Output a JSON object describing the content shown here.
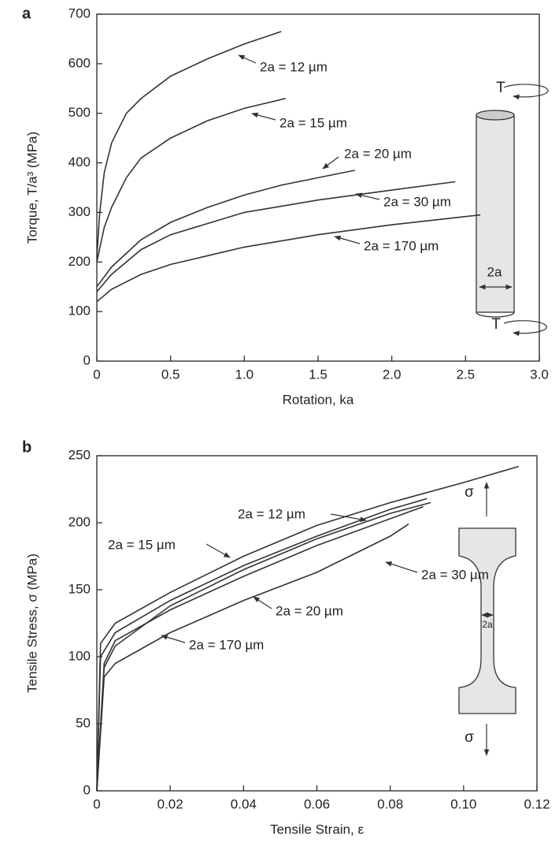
{
  "chart_data": [
    {
      "type": "line",
      "panel": "a",
      "xlabel": "Rotation, ka",
      "ylabel": "Torque, T/a³ (MPa)",
      "xlim": [
        0,
        3
      ],
      "ylim": [
        0,
        700
      ],
      "xticks": [
        0,
        0.5,
        {
          "value": 1,
          "label": "1.0"
        },
        1.5,
        {
          "value": 2,
          "label": "2.0"
        },
        2.5,
        {
          "value": 3,
          "label": "3.0"
        }
      ],
      "yticks": [
        0,
        100,
        200,
        300,
        400,
        500,
        600,
        700
      ],
      "series": [
        {
          "name": "2a = 12 µm",
          "color": "#333333",
          "x": [
            0,
            0.02,
            0.05,
            0.1,
            0.2,
            0.3,
            0.5,
            0.75,
            1.0,
            1.25
          ],
          "values": [
            210,
            300,
            380,
            440,
            500,
            530,
            575,
            610,
            640,
            665
          ]
        },
        {
          "name": "2a = 15 µm",
          "color": "#333333",
          "x": [
            0,
            0.05,
            0.1,
            0.2,
            0.3,
            0.5,
            0.75,
            1.0,
            1.28
          ],
          "values": [
            200,
            270,
            310,
            370,
            410,
            450,
            485,
            510,
            530
          ]
        },
        {
          "name": "2a = 20 µm",
          "color": "#333333",
          "x": [
            0,
            0.1,
            0.3,
            0.5,
            0.75,
            1.0,
            1.25,
            1.5,
            1.75
          ],
          "values": [
            150,
            190,
            245,
            280,
            310,
            335,
            355,
            370,
            385
          ]
        },
        {
          "name": "2a = 30 µm",
          "color": "#333333",
          "x": [
            0,
            0.1,
            0.3,
            0.5,
            1.0,
            1.5,
            2.0,
            2.43
          ],
          "values": [
            140,
            175,
            225,
            255,
            300,
            325,
            345,
            362
          ]
        },
        {
          "name": "2a = 170 µm",
          "color": "#333333",
          "x": [
            0,
            0.1,
            0.3,
            0.5,
            1.0,
            1.5,
            2.0,
            2.6
          ],
          "values": [
            120,
            145,
            175,
            195,
            230,
            255,
            275,
            295
          ]
        }
      ],
      "diagram": {
        "load_top": "T",
        "load_bottom": "T",
        "width": "2a"
      }
    },
    {
      "type": "line",
      "panel": "b",
      "xlabel": "Tensile Strain, ε",
      "ylabel": "Tensile Stress, σ (MPa)",
      "xlim": [
        0,
        0.12
      ],
      "ylim": [
        0,
        250
      ],
      "xticks": [
        0,
        0.02,
        0.04,
        0.06,
        0.08,
        {
          "value": 0.1,
          "label": "0.10"
        },
        0.12
      ],
      "yticks": [
        0,
        50,
        100,
        150,
        200,
        250
      ],
      "series": [
        {
          "name": "2a = 12 µm",
          "color": "#333333",
          "x": [
            0,
            0.001,
            0.005,
            0.02,
            0.04,
            0.06,
            0.08,
            0.09
          ],
          "values": [
            0,
            100,
            118,
            142,
            168,
            190,
            210,
            218
          ]
        },
        {
          "name": "2a = 15 µm",
          "color": "#333333",
          "x": [
            0,
            0.001,
            0.005,
            0.02,
            0.04,
            0.06,
            0.08,
            0.1,
            0.115
          ],
          "values": [
            0,
            110,
            125,
            148,
            175,
            198,
            215,
            230,
            242
          ]
        },
        {
          "name": "2a = 30 µm",
          "color": "#333333",
          "x": [
            0,
            0.002,
            0.005,
            0.02,
            0.04,
            0.06,
            0.08,
            0.091
          ],
          "values": [
            0,
            92,
            108,
            138,
            165,
            188,
            207,
            215
          ]
        },
        {
          "name": "2a = 20 µm",
          "color": "#333333",
          "x": [
            0,
            0.002,
            0.005,
            0.02,
            0.04,
            0.06,
            0.08,
            0.089
          ],
          "values": [
            0,
            95,
            112,
            135,
            160,
            183,
            203,
            212
          ]
        },
        {
          "name": "2a = 170 µm",
          "color": "#333333",
          "x": [
            0,
            0.002,
            0.005,
            0.02,
            0.04,
            0.06,
            0.08,
            0.085
          ],
          "values": [
            0,
            85,
            95,
            118,
            142,
            163,
            190,
            199
          ]
        }
      ],
      "diagram": {
        "load_top": "σ",
        "load_bottom": "σ",
        "width": "2a"
      }
    }
  ]
}
